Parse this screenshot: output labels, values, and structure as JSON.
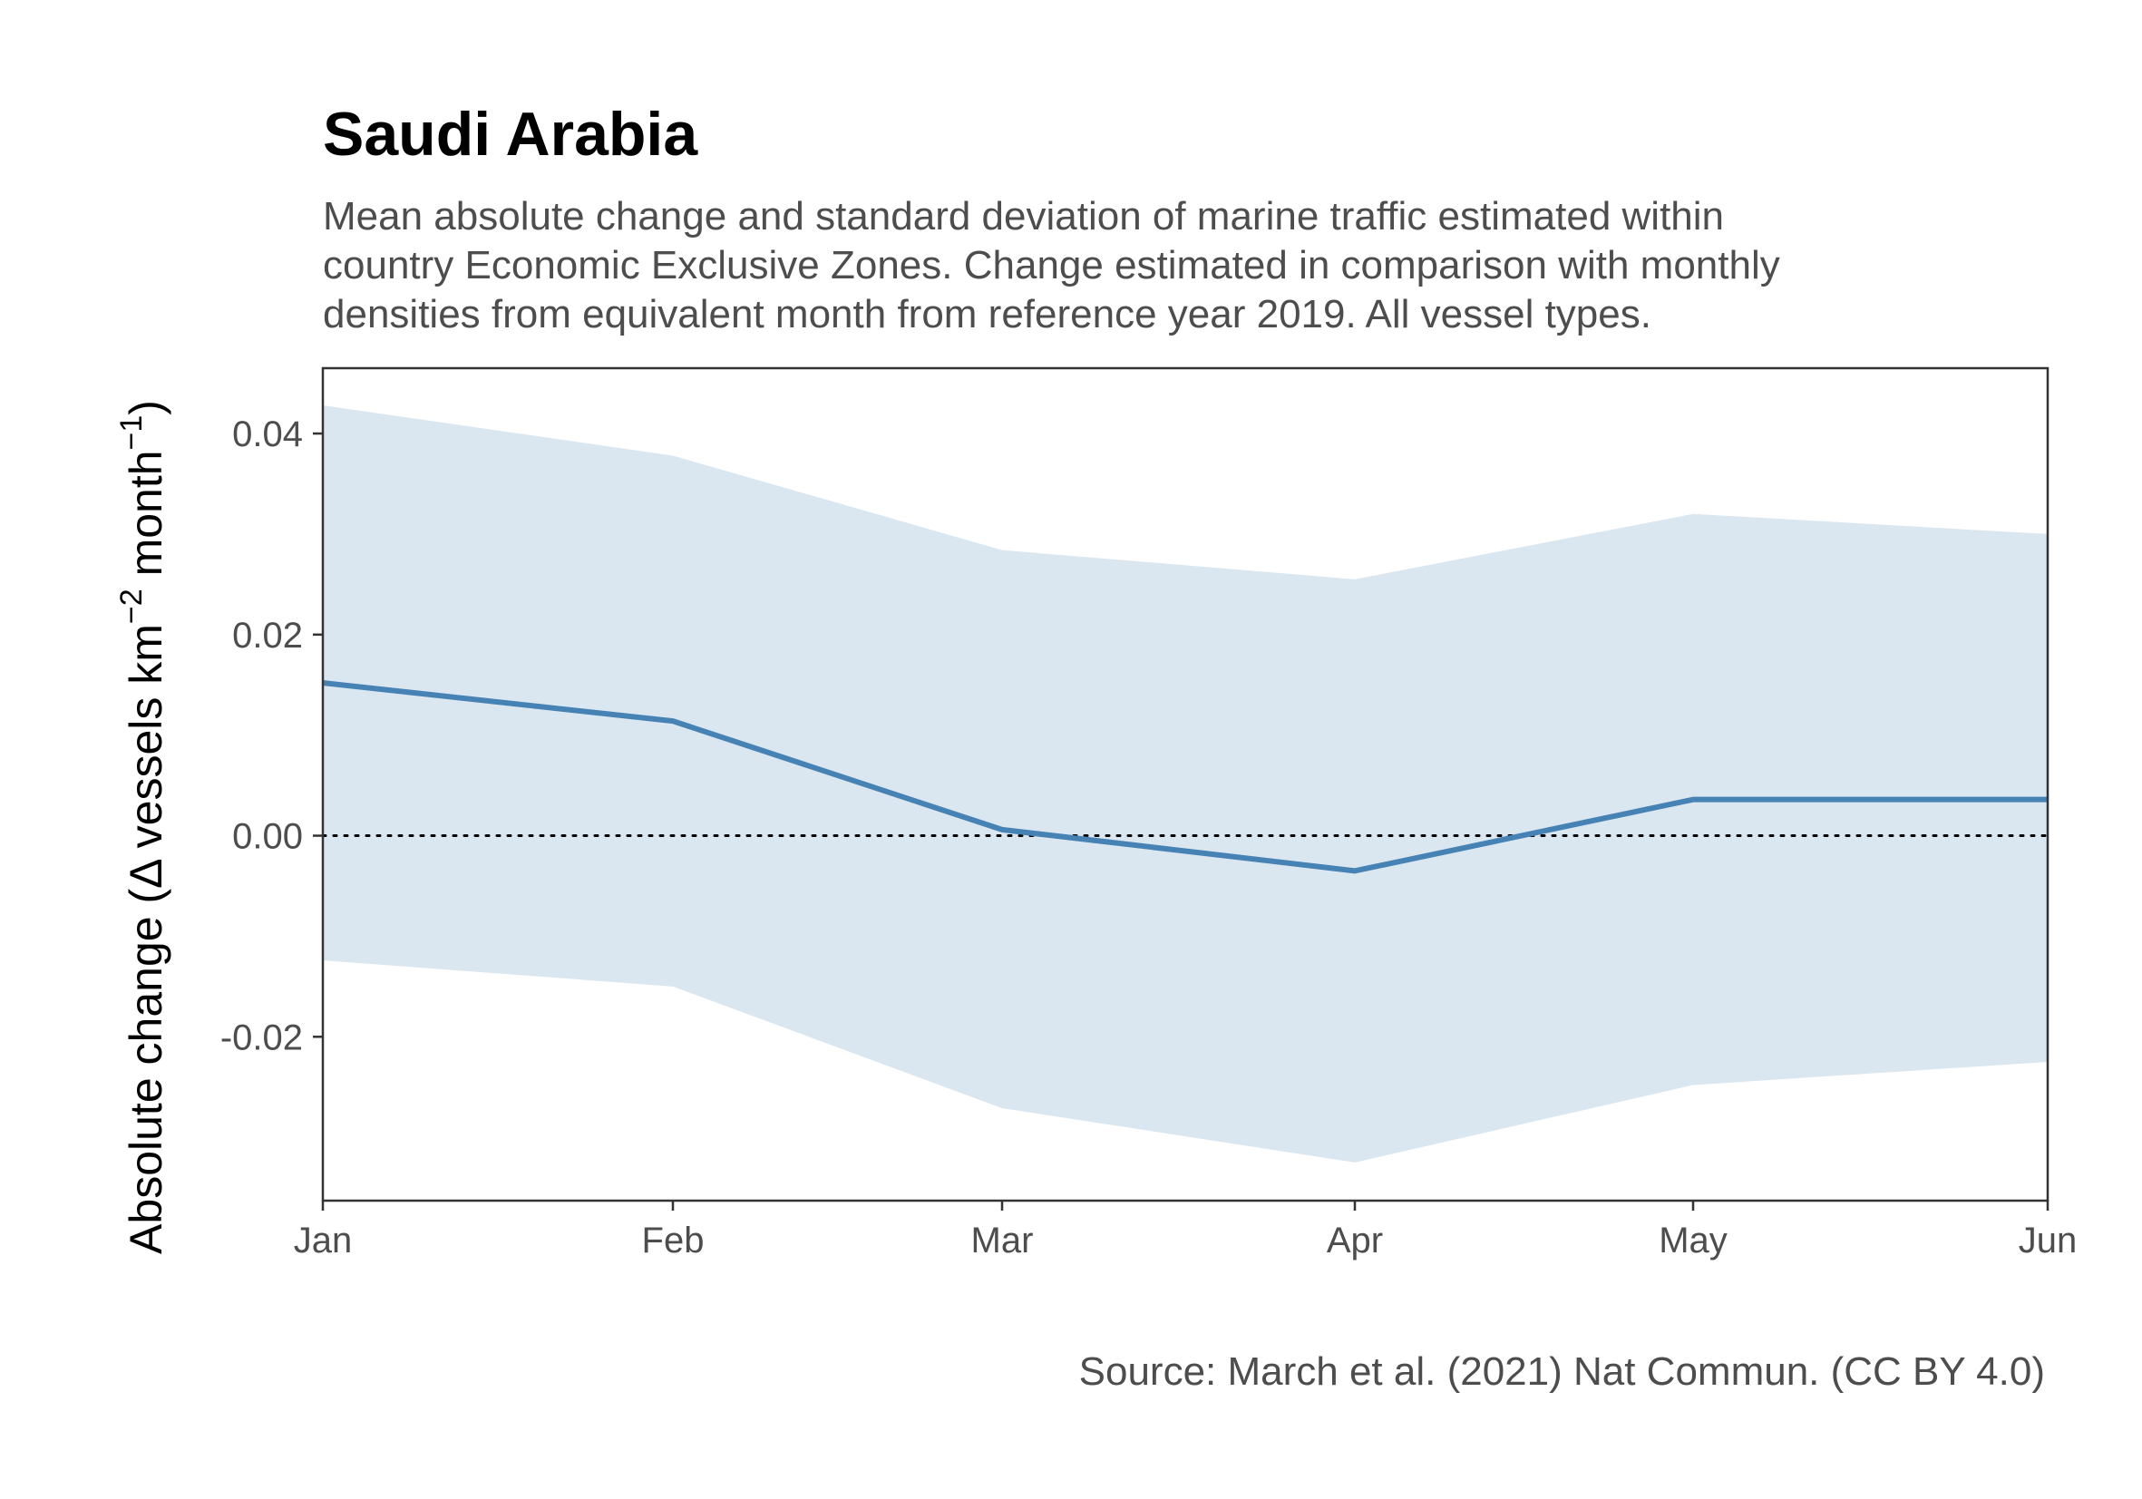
{
  "title": "Saudi Arabia",
  "subtitle_lines": [
    "Mean absolute change and standard deviation of marine traffic estimated within",
    "country Economic Exclusive Zones. Change estimated in comparison with monthly",
    "densities from equivalent month from reference year 2019. All vessel types."
  ],
  "caption": "Source: March et al. (2021) Nat Commun. (CC BY 4.0)",
  "ylabel": {
    "prefix": "Absolute change (",
    "delta": "Δ",
    "vessels": " vessels km",
    "exp1": "−2",
    "month": " month",
    "exp2": "−1",
    "suffix": ")"
  },
  "colors": {
    "line": "#4682b4",
    "ribbon": "#dae6f0",
    "reference_line": "#000000",
    "axis": "#333333",
    "tick_text": "#4d4d4d"
  },
  "chart_data": {
    "type": "line",
    "x": [
      "Jan",
      "Feb",
      "Mar",
      "Apr",
      "May",
      "Jun"
    ],
    "series": [
      {
        "mean": [
          0.0152,
          0.0114,
          0.0006,
          -0.0035,
          0.0036,
          0.0036
        ],
        "sd_upper": [
          0.0428,
          0.0378,
          0.0284,
          0.0255,
          0.032,
          0.03
        ],
        "sd_lower": [
          -0.0124,
          -0.015,
          -0.0271,
          -0.0325,
          -0.0248,
          -0.0225
        ]
      }
    ],
    "reference_line": {
      "y": 0,
      "style": "dotted"
    },
    "y_ticks": [
      0.04,
      0.02,
      0.0,
      -0.02
    ],
    "y_tick_labels": [
      "0.04",
      "0.02",
      "0.00",
      "-0.02"
    ],
    "ylim": [
      -0.0363,
      0.0465
    ],
    "grid": false,
    "legend": "none"
  }
}
